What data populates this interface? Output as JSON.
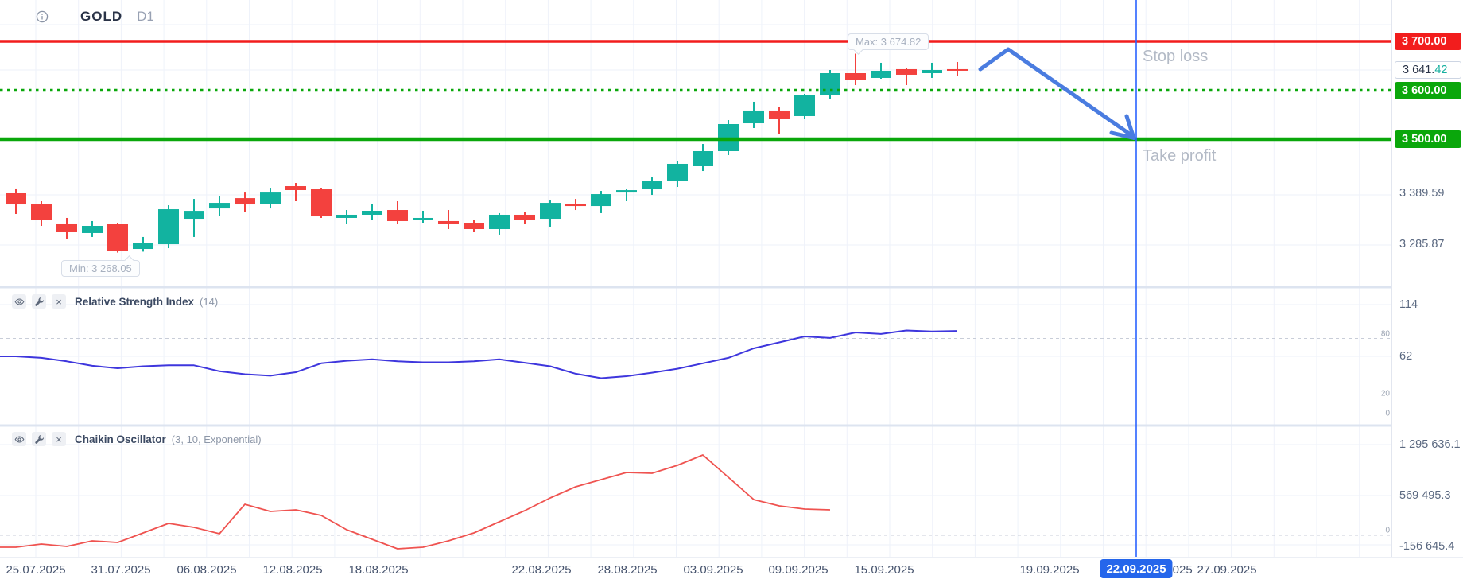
{
  "header": {
    "symbol": "GOLD",
    "timeframe": "D1"
  },
  "annotations": {
    "stop_loss_label": "Stop loss",
    "take_profit_label": "Take profit",
    "max_tooltip": "Max: 3 674.82",
    "min_tooltip": "Min: 3 268.05",
    "partial_date_label": "2025"
  },
  "price_axis": {
    "stop_loss_pill": "3 700.00",
    "entry_pill": "3 600.00",
    "take_profit_pill": "3 500.00",
    "current_price_int": "3 641.",
    "current_price_dec": "42",
    "labels": [
      {
        "text": "3 389.59",
        "value": 3389.59
      },
      {
        "text": "3 285.87",
        "value": 3285.87
      }
    ]
  },
  "rsi_pane": {
    "title": "Relative Strength Index",
    "params": "(14)",
    "axis_labels": [
      {
        "text": "114",
        "value": 114
      },
      {
        "text": "62",
        "value": 62
      }
    ],
    "level_labels": [
      "80",
      "20",
      "0"
    ]
  },
  "chaikin_pane": {
    "title": "Chaikin Oscillator",
    "params": "(3, 10, Exponential)",
    "axis_labels": [
      {
        "text": "1 295 636.1",
        "value": 1295636.1
      },
      {
        "text": "569 495.3",
        "value": 569495.3
      },
      {
        "text": "-156 645.4",
        "value": -156645.4
      }
    ],
    "level_labels": [
      "0"
    ]
  },
  "time_axis": {
    "labels": [
      "25.07.2025",
      "31.07.2025",
      "06.08.2025",
      "12.08.2025",
      "18.08.2025",
      "22.08.2025",
      "28.08.2025",
      "03.09.2025",
      "09.09.2025",
      "15.09.2025",
      "19.09.2025",
      "27.09.2025"
    ],
    "selected": "22.09.2025"
  },
  "colors": {
    "candle_up": "#12b3a0",
    "candle_down": "#f3413e",
    "stop_loss_line": "#f21d1d",
    "take_profit_line": "#0aa70b",
    "dotted_line": "#0aa70b",
    "rsi_line": "#3e36dd",
    "chaikin_line": "#ef5350",
    "vertical_line": "#2962ff",
    "arrow": "#4a7ce0",
    "selected_date_bg": "#2566eb",
    "current_price_dec": "#17b0a0",
    "grid": "#eef2fa"
  },
  "chart_data": [
    {
      "type": "candlestick",
      "title": "GOLD D1",
      "levels": {
        "stop_loss": 3700,
        "dotted_level": 3600,
        "take_profit": 3500,
        "current_price": 3641.42,
        "max": 3674.82,
        "min": 3268.05
      },
      "y_axis_labels": [
        3389.59,
        3285.87
      ],
      "x_axis_labels": [
        "25.07.2025",
        "31.07.2025",
        "06.08.2025",
        "12.08.2025",
        "18.08.2025",
        "22.08.2025",
        "28.08.2025",
        "03.09.2025",
        "09.09.2025",
        "15.09.2025",
        "19.09.2025",
        "22.09.2025",
        "27.09.2025"
      ],
      "candles_ohlc": [
        [
          3389.4,
          3399.2,
          3347.1,
          3366.6
        ],
        [
          3366.6,
          3373.1,
          3322.7,
          3334.1
        ],
        [
          3327.6,
          3339.0,
          3296.7,
          3309.7
        ],
        [
          3308.1,
          3332.5,
          3300.0,
          3322.7
        ],
        [
          3326.0,
          3329.2,
          3268.05,
          3272.0
        ],
        [
          3275.5,
          3300.0,
          3270.0,
          3288.5
        ],
        [
          3285.2,
          3364.9,
          3277.1,
          3356.8
        ],
        [
          3337.3,
          3377.9,
          3300.0,
          3353.5
        ],
        [
          3358.4,
          3384.4,
          3342.2,
          3369.8
        ],
        [
          3379.5,
          3390.9,
          3351.9,
          3366.6
        ],
        [
          3368.2,
          3400.7,
          3358.4,
          3390.9
        ],
        [
          3404.0,
          3410.5,
          3373.1,
          3395.9
        ],
        [
          3397.5,
          3400.7,
          3339.0,
          3342.2
        ],
        [
          3339.0,
          3355.2,
          3327.6,
          3345.5
        ],
        [
          3345.5,
          3366.6,
          3335.7,
          3353.6
        ],
        [
          3355.2,
          3373.1,
          3326.0,
          3332.5
        ],
        [
          3335.7,
          3353.6,
          3329.2,
          3339.0
        ],
        [
          3332.5,
          3355.2,
          3316.2,
          3327.6
        ],
        [
          3329.2,
          3335.7,
          3309.7,
          3316.2
        ],
        [
          3316.2,
          3348.8,
          3304.9,
          3345.5
        ],
        [
          3345.5,
          3352.0,
          3327.6,
          3334.1
        ],
        [
          3337.3,
          3374.7,
          3321.1,
          3369.8
        ],
        [
          3368.2,
          3377.9,
          3355.2,
          3363.3
        ],
        [
          3363.3,
          3394.2,
          3348.8,
          3387.7
        ],
        [
          3390.9,
          3397.5,
          3373.1,
          3395.8
        ],
        [
          3397.5,
          3421.9,
          3386.1,
          3415.4
        ],
        [
          3415.4,
          3454.5,
          3402.4,
          3449.6
        ],
        [
          3444.7,
          3490.2,
          3434.9,
          3475.6
        ],
        [
          3475.6,
          3539.0,
          3467.5,
          3530.9
        ],
        [
          3532.5,
          3576.5,
          3522.8,
          3558.6
        ],
        [
          3558.6,
          3565.1,
          3511.4,
          3542.3
        ],
        [
          3547.2,
          3592.7,
          3540.7,
          3589.5
        ],
        [
          3589.5,
          3641.5,
          3583.0,
          3635.0
        ],
        [
          3635.0,
          3674.82,
          3610.6,
          3622.0
        ],
        [
          3625.3,
          3656.2,
          3623.6,
          3639.9
        ],
        [
          3643.2,
          3646.4,
          3610.6,
          3631.8
        ],
        [
          3635.0,
          3656.2,
          3625.3,
          3641.5
        ],
        [
          3643.2,
          3657.8,
          3628.6,
          3641.42
        ]
      ]
    },
    {
      "type": "line",
      "name": "Relative Strength Index (14)",
      "levels": [
        80,
        20,
        0
      ],
      "y_axis_labels": [
        114,
        62
      ],
      "values": [
        62,
        60.5,
        57,
        52.5,
        50,
        52,
        53,
        53,
        47,
        44,
        42.5,
        46,
        55,
        57.5,
        59,
        57,
        56,
        56,
        57,
        59,
        55.5,
        52,
        44.5,
        40,
        42,
        45.5,
        49.5,
        55,
        60.5,
        70,
        76,
        82,
        80.5,
        86,
        84.5,
        88,
        87,
        87.5
      ]
    },
    {
      "type": "line",
      "name": "Chaikin Oscillator (3, 10, Exponential)",
      "levels": [
        0
      ],
      "y_axis_labels": [
        1295636.1,
        569495.3,
        -156645.4
      ],
      "values": [
        -170000,
        -125000,
        -159000,
        -79000,
        -102000,
        34000,
        170000,
        113000,
        23000,
        442000,
        340000,
        363000,
        284000,
        79000,
        -57000,
        -193000,
        -170000,
        -79000,
        34000,
        193000,
        352000,
        533000,
        692000,
        794000,
        896000,
        885000,
        998000,
        1146000,
        828000,
        510000,
        420000,
        374000,
        363000
      ]
    }
  ]
}
